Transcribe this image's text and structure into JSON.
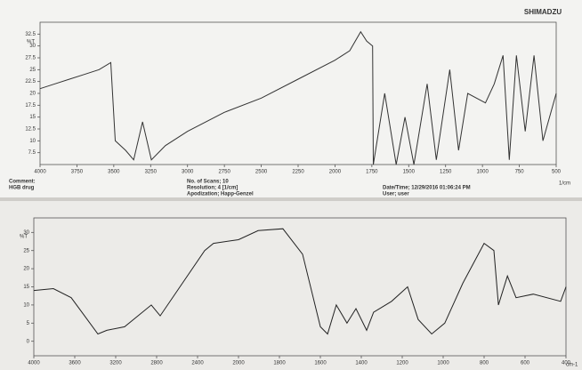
{
  "chart_data": [
    {
      "type": "line",
      "brand": "SHIMADZU",
      "ylabel": "%T",
      "xlabel": "1/cm",
      "color": "#333333",
      "grid": false,
      "notes": [
        "Comment:",
        "HGB drug",
        "No. of Scans; 10",
        "Resolution; 4 [1/cm]",
        "Apodization; Happ-Genzel",
        "Date/Time; 12/29/2016 01:06:24 PM",
        "User; user"
      ],
      "xlim": [
        4000,
        500
      ],
      "xticks": [
        4000,
        3750,
        3500,
        3250,
        3000,
        2750,
        2500,
        2250,
        2000,
        1750,
        1500,
        1250,
        1000,
        750,
        500
      ],
      "ylim": [
        5,
        35
      ],
      "yticks": [
        7.5,
        10,
        12.5,
        15,
        17.5,
        20,
        22.5,
        25,
        27.5,
        30,
        32.5
      ],
      "x": [
        4000,
        3900,
        3800,
        3700,
        3600,
        3520,
        3490,
        3420,
        3365,
        3305,
        3245,
        3150,
        3000,
        2750,
        2500,
        2250,
        2000,
        1900,
        1826,
        1785,
        1745,
        1740,
        1663,
        1585,
        1525,
        1465,
        1375,
        1313,
        1222,
        1162,
        1100,
        980,
        920,
        860,
        818,
        770,
        710,
        650,
        590,
        500
      ],
      "values": [
        21,
        22,
        23,
        24,
        25,
        26.5,
        10,
        8,
        6,
        14,
        6,
        9,
        12,
        16,
        19,
        23,
        27,
        29,
        33,
        31,
        30,
        5,
        20,
        5,
        15,
        5,
        22,
        6,
        25,
        8,
        20,
        18,
        22,
        28,
        6,
        28,
        12,
        28,
        10,
        20
      ]
    },
    {
      "type": "line",
      "ylabel": "%T",
      "xlabel": "cm-1",
      "color": "#222222",
      "grid": false,
      "xlim": [
        4000,
        400
      ],
      "xticks": [
        4000,
        3600,
        3200,
        2800,
        2400,
        2000,
        1800,
        1600,
        1400,
        1200,
        1000,
        800,
        600,
        400
      ],
      "ylim": [
        -4,
        34
      ],
      "yticks": [
        0,
        5,
        10,
        15,
        20,
        25,
        30
      ],
      "x": [
        4000,
        3809,
        3635,
        3504,
        3374,
        3287,
        3113,
        2852,
        2765,
        2330,
        2244,
        2000,
        1904,
        1783,
        1687,
        1600,
        1565,
        1522,
        1470,
        1426,
        1374,
        1340,
        1252,
        1174,
        1122,
        1056,
        992,
        904,
        800,
        752,
        730,
        686,
        644,
        560,
        426,
        400
      ],
      "values": [
        14,
        14.5,
        12,
        7,
        2,
        3,
        4,
        10,
        7,
        25,
        27,
        28,
        30.5,
        31,
        24,
        4,
        2,
        10,
        5,
        9,
        3,
        8,
        11,
        15,
        6,
        2,
        5,
        16,
        27,
        25,
        10,
        18,
        12,
        13,
        11,
        15
      ]
    }
  ]
}
